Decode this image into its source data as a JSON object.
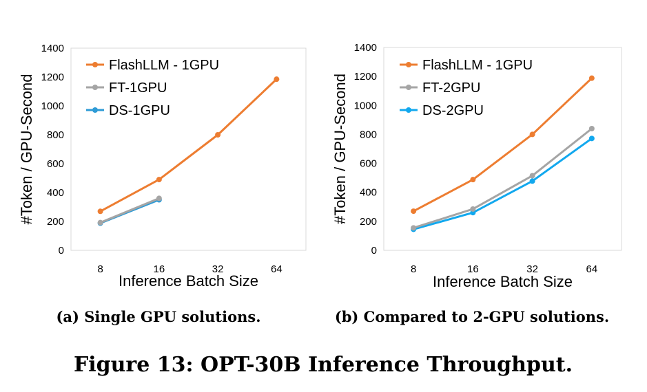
{
  "figure_caption": "Figure 13: OPT-30B Inference Throughput.",
  "chart_data": [
    {
      "type": "line",
      "subcaption": "(a) Single GPU solutions.",
      "categories": [
        "8",
        "16",
        "32",
        "64"
      ],
      "xlabel": "Inference Batch Size",
      "ylabel": "#Token / GPU-Second",
      "ylim": [
        0,
        1400
      ],
      "yticks": [
        "0",
        "200",
        "400",
        "600",
        "800",
        "1000",
        "1200",
        "1400"
      ],
      "grid": false,
      "legend": "top-left",
      "series": [
        {
          "name": "FlashLLM - 1GPU",
          "color": "#ED7D31",
          "values": [
            270,
            490,
            800,
            1185
          ]
        },
        {
          "name": "FT-1GPU",
          "color": "#A5A5A5",
          "values": [
            192,
            360,
            null,
            null
          ]
        },
        {
          "name": "DS-1GPU",
          "color": "#2E9BD6",
          "values": [
            188,
            350,
            null,
            null
          ]
        }
      ]
    },
    {
      "type": "line",
      "subcaption": "(b) Compared to 2-GPU solutions.",
      "categories": [
        "8",
        "16",
        "32",
        "64"
      ],
      "xlabel": "Inference Batch Size",
      "ylabel": "#Token / GPU-Second",
      "ylim": [
        0,
        1400
      ],
      "yticks": [
        "0",
        "200",
        "400",
        "600",
        "800",
        "1000",
        "1200",
        "1400"
      ],
      "grid": false,
      "legend": "top-left",
      "series": [
        {
          "name": "FlashLLM - 1GPU",
          "color": "#ED7D31",
          "values": [
            270,
            488,
            800,
            1188
          ]
        },
        {
          "name": "FT-2GPU",
          "color": "#A5A5A5",
          "values": [
            155,
            285,
            515,
            840
          ]
        },
        {
          "name": "DS-2GPU",
          "color": "#12A8EE",
          "values": [
            145,
            260,
            478,
            772
          ]
        }
      ]
    }
  ]
}
